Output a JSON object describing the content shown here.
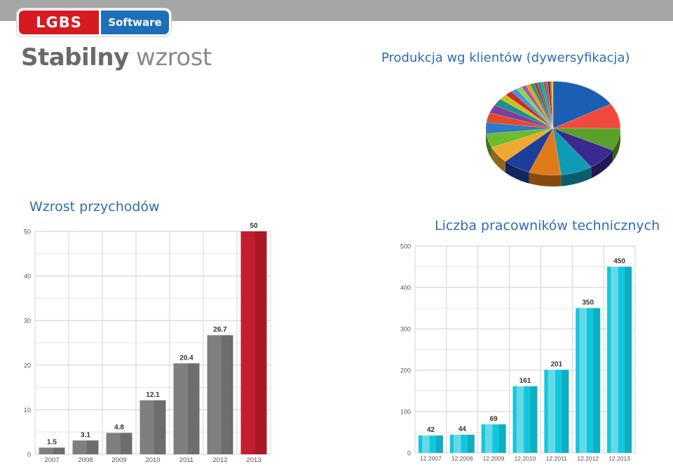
{
  "logo": {
    "left_text": "LGBS",
    "right_text": "Software"
  },
  "slide_title": {
    "bold": "Stabilny",
    "light": "wzrost"
  },
  "headings": {
    "pie": "Produkcja wg klientów (dywersyfikacja)",
    "revenue": "Wzrost przychodów",
    "staff": "Liczba pracowników technicznych"
  },
  "colors": {
    "heading_blue": "#2e6bb3",
    "revenue_bar": "#7f7f7f",
    "revenue_bar_highlight": "#c41e2d",
    "staff_bar": "#12c7dd",
    "grid": "#d9d9d9"
  },
  "chart_data": [
    {
      "type": "pie",
      "title": "Produkcja wg klientów (dywersyfikacja)",
      "slices": [
        {
          "value": 17,
          "color": "#1a5fb4"
        },
        {
          "value": 9,
          "color": "#f04a3e"
        },
        {
          "value": 8,
          "color": "#5aa12b"
        },
        {
          "value": 8,
          "color": "#3a2a8f"
        },
        {
          "value": 8,
          "color": "#0f9bb5"
        },
        {
          "value": 8,
          "color": "#e07b19"
        },
        {
          "value": 7,
          "color": "#1b3f9a"
        },
        {
          "value": 6,
          "color": "#f0a830"
        },
        {
          "value": 5,
          "color": "#6dbb2e"
        },
        {
          "value": 4,
          "color": "#2f78c6"
        },
        {
          "value": 3.5,
          "color": "#e04b2a"
        },
        {
          "value": 3,
          "color": "#7d3fa0"
        },
        {
          "value": 2.5,
          "color": "#1e8f8a"
        },
        {
          "value": 2,
          "color": "#c8c21e"
        },
        {
          "value": 1.8,
          "color": "#d6252b"
        },
        {
          "value": 1.6,
          "color": "#3a9ad9"
        },
        {
          "value": 1.4,
          "color": "#8fd14f"
        },
        {
          "value": 1.2,
          "color": "#9b59b6"
        },
        {
          "value": 1.1,
          "color": "#f39c12"
        },
        {
          "value": 1,
          "color": "#16a085"
        },
        {
          "value": 0.9,
          "color": "#c0392b"
        },
        {
          "value": 0.8,
          "color": "#2980b9"
        },
        {
          "value": 0.7,
          "color": "#27ae60"
        },
        {
          "value": 0.6,
          "color": "#8e44ad"
        },
        {
          "value": 0.5,
          "color": "#d35400"
        },
        {
          "value": 0.5,
          "color": "#2c3e50"
        },
        {
          "value": 0.4,
          "color": "#e74c3c"
        },
        {
          "value": 0.4,
          "color": "#f1c40f"
        }
      ]
    },
    {
      "type": "bar",
      "title": "Wzrost przychodów",
      "categories": [
        "2007",
        "2008",
        "2009",
        "2010",
        "2011",
        "2012",
        "2013"
      ],
      "values": [
        1.5,
        3.1,
        4.8,
        12.1,
        20.4,
        26.7,
        50
      ],
      "value_labels": [
        "1.5",
        "3.1",
        "4.8",
        "12.1",
        "20.4",
        "26.7",
        "50"
      ],
      "highlight_index": 6,
      "ylim": [
        0,
        50
      ],
      "yticks": [
        "0",
        "10",
        "20",
        "30",
        "40",
        "50"
      ],
      "ytick_values": [
        0,
        10,
        20,
        30,
        40,
        50
      ],
      "grid": true
    },
    {
      "type": "bar",
      "title": "Liczba pracowników technicznych",
      "categories": [
        "12.2007",
        "12.2008",
        "12.2009",
        "12.2010",
        "12.2011",
        "12.2012",
        "12.2013"
      ],
      "values": [
        42,
        44,
        69,
        161,
        201,
        350,
        450
      ],
      "value_labels": [
        "42",
        "44",
        "69",
        "161",
        "201",
        "350",
        "450"
      ],
      "ylim": [
        0,
        500
      ],
      "yticks": [
        "0",
        "100",
        "200",
        "300",
        "400",
        "500"
      ],
      "ytick_values": [
        0,
        100,
        200,
        300,
        400,
        500
      ],
      "grid": true
    }
  ]
}
